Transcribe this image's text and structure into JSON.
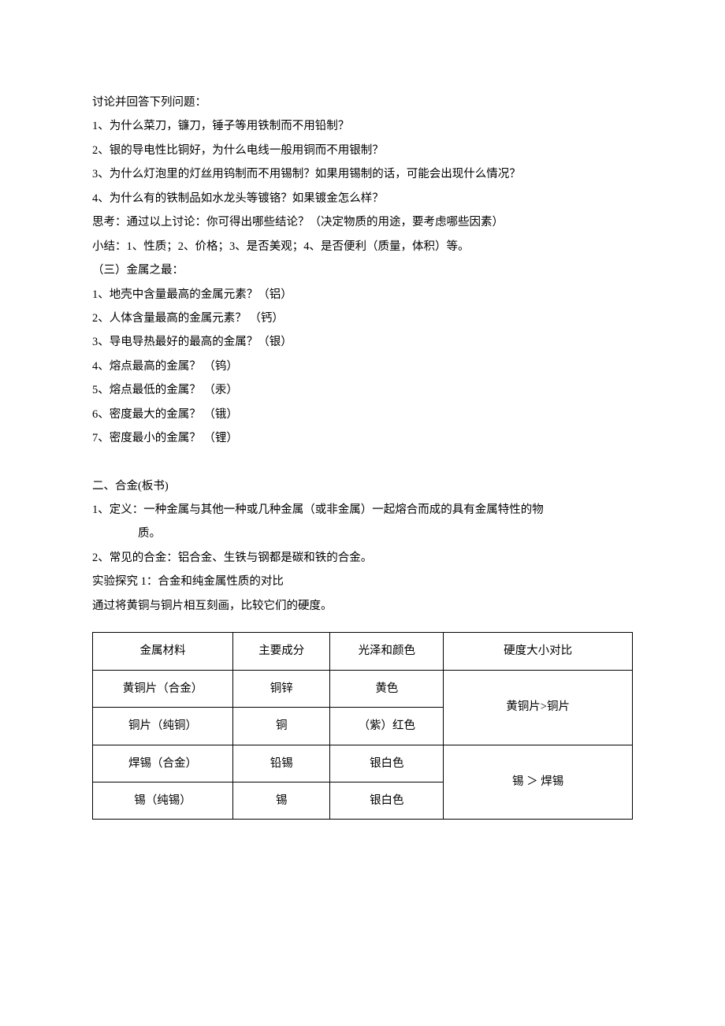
{
  "lines": {
    "l1": "讨论并回答下列问题：",
    "l2": "1、为什么菜刀，镰刀，锤子等用铁制而不用铅制？",
    "l3": "2、银的导电性比铜好，为什么电线一般用铜而不用银制？",
    "l4": "3、为什么灯泡里的灯丝用钨制而不用锡制？如果用锡制的话，可能会出现什么情况？",
    "l5": "4、为什么有的铁制品如水龙头等镀铬？如果镀金怎么样？",
    "l6": "思考：通过以上讨论：你可得出哪些结论？（决定物质的用途，要考虑哪些因素）",
    "l7": "小结：1、性质；2、价格；3、是否美观；4、是否便利（质量，体积）等。",
    "l8": "（三）金属之最：",
    "l9": "1、地壳中含量最高的金属元素？（铝）",
    "l10": "2、人体含量最高的金属元素？ （钙）",
    "l11": "3、导电导热最好的最高的金属？（银）",
    "l12": "4、熔点最高的金属？ （钨）",
    "l13": "5、熔点最低的金属？ （汞）",
    "l14": "6、密度最大的金属？ （锇）",
    "l15": "7、密度最小的金属？ （锂）",
    "l16": "二、合金(板书)",
    "l17": "1、定义：一种金属与其他一种或几种金属（或非金属）一起熔合而成的具有金属特性的物",
    "l18": "质。",
    "l19": "2、常见的合金：铝合金、生铁与钢都是碳和铁的合金。",
    "l20": "实验探究 1：合金和纯金属性质的对比",
    "l21": "通过将黄铜与铜片相互刻画，比较它们的硬度。"
  },
  "table": {
    "header": {
      "c1": "金属材料",
      "c2": "主要成分",
      "c3": "光泽和颜色",
      "c4": "硬度大小对比"
    },
    "rows": [
      {
        "c1": "黄铜片（合金）",
        "c2": "铜锌",
        "c3": "黄色",
        "c4": "黄铜片>铜片"
      },
      {
        "c1": "铜片（纯铜）",
        "c2": "铜",
        "c3": "（紫）红色",
        "c4": ""
      },
      {
        "c1": "焊锡（合金）",
        "c2": "铅锡",
        "c3": "银白色",
        "c4": "锡  ＞  焊锡"
      },
      {
        "c1": "锡（纯锡）",
        "c2": "锡",
        "c3": "银白色",
        "c4": ""
      }
    ]
  }
}
